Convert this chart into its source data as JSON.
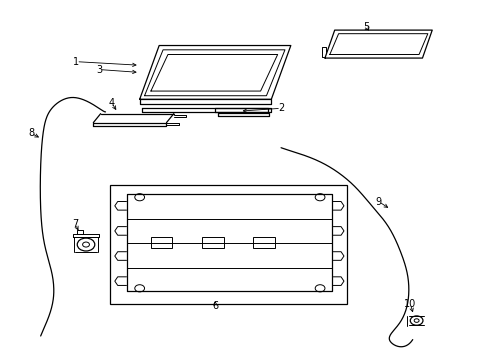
{
  "background_color": "#ffffff",
  "line_color": "#000000",
  "label_color": "#000000",
  "fig_width": 4.89,
  "fig_height": 3.6,
  "dpi": 100
}
